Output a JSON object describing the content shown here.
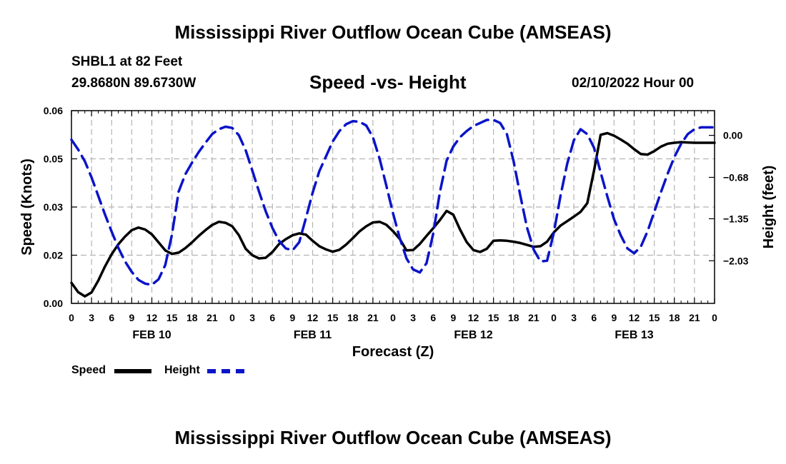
{
  "header": {
    "title": "Mississippi River Outflow Ocean Cube (AMSEAS)",
    "station": "SHBL1 at 82 Feet",
    "coords": "29.8680N  89.6730W",
    "subtitle": "Speed -vs- Height",
    "datetime": "02/10/2022 Hour 00"
  },
  "footer": {
    "title": "Mississippi River Outflow Ocean Cube (AMSEAS)"
  },
  "legend": {
    "speed": "Speed",
    "height": "Height"
  },
  "chart_data": {
    "type": "line",
    "title": "Speed -vs- Height",
    "xlabel": "Forecast (Z)",
    "ylabel": "Speed (Knots)",
    "y2label": "Height (feet)",
    "xlim": [
      0,
      96
    ],
    "ylim": [
      0,
      0.06
    ],
    "y2lim": [
      -2.72,
      0.4
    ],
    "grid": true,
    "x_tick_hours": [
      0,
      3,
      6,
      9,
      12,
      15,
      18,
      21,
      24,
      27,
      30,
      33,
      36,
      39,
      42,
      45,
      48,
      51,
      54,
      57,
      60,
      63,
      66,
      69,
      72,
      75,
      78,
      81,
      84,
      87,
      90,
      93,
      96
    ],
    "x_tick_labels": [
      "0",
      "3",
      "6",
      "9",
      "12",
      "15",
      "18",
      "21",
      "0",
      "3",
      "6",
      "9",
      "12",
      "15",
      "18",
      "21",
      "0",
      "3",
      "6",
      "9",
      "12",
      "15",
      "18",
      "21",
      "0",
      "3",
      "6",
      "9",
      "12",
      "15",
      "18",
      "21",
      "0"
    ],
    "date_labels": [
      {
        "hour": 12,
        "label": "FEB 10"
      },
      {
        "hour": 36,
        "label": "FEB 11"
      },
      {
        "hour": 60,
        "label": "FEB 12"
      },
      {
        "hour": 84,
        "label": "FEB 13"
      }
    ],
    "y_ticks": [
      0.0,
      0.015,
      0.03,
      0.045,
      0.06
    ],
    "y_tick_labels": [
      "0.00",
      "0.02",
      "0.03",
      "0.05",
      "0.06"
    ],
    "y2_ticks": [
      0.0,
      -0.68,
      -1.35,
      -2.03
    ],
    "y2_tick_labels": [
      "0.00",
      "−0.68",
      "−1.35",
      "−2.03"
    ],
    "series": [
      {
        "name": "Speed",
        "axis": "left",
        "color": "#000000",
        "dash": false,
        "x": [
          0,
          1,
          2,
          3,
          4,
          5,
          6,
          7,
          8,
          9,
          10,
          11,
          12,
          13,
          14,
          15,
          16,
          17,
          18,
          19,
          20,
          21,
          22,
          23,
          24,
          25,
          26,
          27,
          28,
          29,
          30,
          31,
          32,
          33,
          34,
          35,
          36,
          37,
          38,
          39,
          40,
          41,
          42,
          43,
          44,
          45,
          46,
          47,
          48,
          49,
          50,
          51,
          52,
          53,
          54,
          55,
          56,
          57,
          58,
          59,
          60,
          61,
          62,
          63,
          64,
          65,
          66,
          67,
          68,
          69,
          70,
          71,
          72,
          73,
          74,
          75,
          76,
          77,
          78,
          79,
          80,
          81,
          82,
          83,
          84,
          85,
          86,
          87,
          88,
          89,
          90,
          91,
          92,
          93,
          94,
          95,
          96
        ],
        "y": [
          0.0064,
          0.0035,
          0.0022,
          0.0034,
          0.0071,
          0.0115,
          0.0153,
          0.0184,
          0.0208,
          0.0228,
          0.0236,
          0.023,
          0.0215,
          0.019,
          0.0165,
          0.0154,
          0.0158,
          0.0172,
          0.019,
          0.021,
          0.0228,
          0.0244,
          0.0254,
          0.0251,
          0.024,
          0.0212,
          0.017,
          0.015,
          0.014,
          0.0142,
          0.016,
          0.0185,
          0.02,
          0.0212,
          0.0218,
          0.0214,
          0.0195,
          0.0178,
          0.0168,
          0.0161,
          0.0167,
          0.0183,
          0.0203,
          0.0224,
          0.024,
          0.0252,
          0.0254,
          0.0245,
          0.0225,
          0.0201,
          0.0165,
          0.0166,
          0.0185,
          0.021,
          0.0234,
          0.0259,
          0.0288,
          0.0276,
          0.023,
          0.0191,
          0.0166,
          0.016,
          0.017,
          0.0195,
          0.0196,
          0.0195,
          0.0192,
          0.0188,
          0.0182,
          0.0176,
          0.0178,
          0.0192,
          0.0221,
          0.0242,
          0.0256,
          0.027,
          0.0285,
          0.0312,
          0.0413,
          0.0525,
          0.053,
          0.0522,
          0.051,
          0.0497,
          0.048,
          0.0465,
          0.0463,
          0.0474,
          0.0488,
          0.0497,
          0.05,
          0.0502,
          0.0501,
          0.05,
          0.05,
          0.05,
          0.05
        ]
      },
      {
        "name": "Height",
        "axis": "right",
        "color": "#0a14c8",
        "dash": true,
        "x": [
          0,
          1,
          2,
          3,
          4,
          5,
          6,
          7,
          8,
          9,
          10,
          11,
          12,
          13,
          14,
          15,
          16,
          17,
          18,
          19,
          20,
          21,
          22,
          23,
          24,
          25,
          26,
          27,
          28,
          29,
          30,
          31,
          32,
          33,
          34,
          35,
          36,
          37,
          38,
          39,
          40,
          41,
          42,
          43,
          44,
          45,
          46,
          47,
          48,
          49,
          50,
          51,
          52,
          53,
          54,
          55,
          56,
          57,
          58,
          59,
          60,
          61,
          62,
          63,
          64,
          65,
          66,
          67,
          68,
          69,
          70,
          71,
          72,
          73,
          74,
          75,
          76,
          77,
          78,
          79,
          80,
          81,
          82,
          83,
          84,
          85,
          86,
          87,
          88,
          89,
          90,
          91,
          92,
          93,
          94,
          95,
          96
        ],
        "y": [
          -0.07,
          -0.23,
          -0.42,
          -0.68,
          -0.98,
          -1.28,
          -1.56,
          -1.82,
          -2.04,
          -2.21,
          -2.34,
          -2.4,
          -2.42,
          -2.33,
          -2.1,
          -1.61,
          -0.91,
          -0.63,
          -0.44,
          -0.27,
          -0.12,
          0.02,
          0.1,
          0.14,
          0.12,
          0.0,
          -0.24,
          -0.57,
          -0.91,
          -1.23,
          -1.5,
          -1.71,
          -1.83,
          -1.86,
          -1.73,
          -1.34,
          -0.93,
          -0.58,
          -0.34,
          -0.1,
          0.07,
          0.18,
          0.23,
          0.22,
          0.16,
          -0.03,
          -0.38,
          -0.81,
          -1.26,
          -1.66,
          -1.99,
          -2.17,
          -2.22,
          -2.07,
          -1.59,
          -0.92,
          -0.41,
          -0.18,
          -0.03,
          0.07,
          0.15,
          0.2,
          0.25,
          0.25,
          0.2,
          0.02,
          -0.42,
          -0.97,
          -1.49,
          -1.85,
          -2.04,
          -2.03,
          -1.58,
          -0.98,
          -0.46,
          -0.08,
          0.1,
          0.02,
          -0.2,
          -0.6,
          -0.99,
          -1.36,
          -1.62,
          -1.83,
          -1.91,
          -1.8,
          -1.55,
          -1.24,
          -0.92,
          -0.62,
          -0.35,
          -0.14,
          0.02,
          0.1,
          0.13,
          0.13,
          0.13
        ]
      }
    ]
  }
}
